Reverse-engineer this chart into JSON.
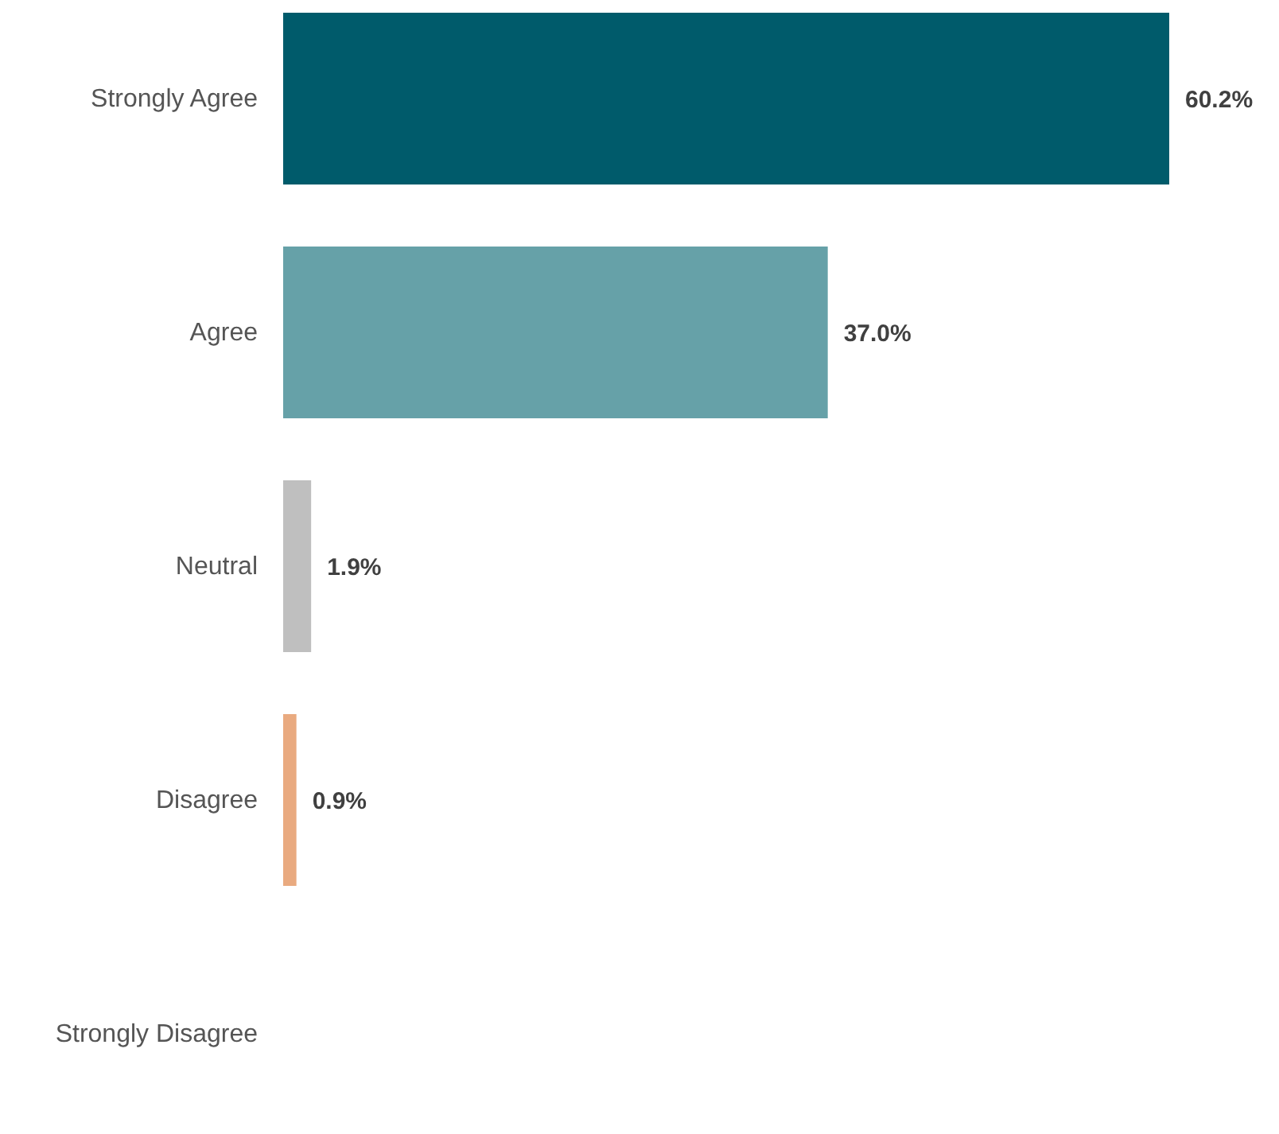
{
  "chart_data": {
    "type": "bar",
    "orientation": "horizontal",
    "categories": [
      "Strongly Agree",
      "Agree",
      "Neutral",
      "Disagree",
      "Strongly Disagree"
    ],
    "values": [
      60.2,
      37.0,
      1.9,
      0.9,
      0
    ],
    "colors": [
      "#005b6b",
      "#66a1a8",
      "#bfbfbf",
      "#e9aa80",
      "#e9aa80"
    ],
    "value_labels": [
      "60.2%",
      "37.0%",
      "1.9%",
      "0.9%",
      null
    ]
  }
}
